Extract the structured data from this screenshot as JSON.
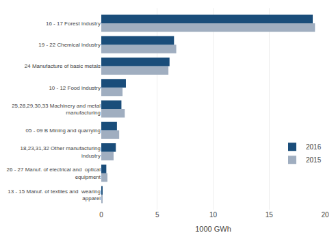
{
  "chart_data": {
    "type": "bar",
    "orientation": "horizontal",
    "categories": [
      "13 - 15 Manuf. of textiles and  wearing\napparel",
      "26 - 27 Manuf. of electrical and  optical\nequipment",
      "18,23,31,32 Other manufacturing\nindustry",
      "05 - 09 B Mining and quarrying",
      "25,28,29,30,33 Machinery and metal\nmanufacturing",
      "10 - 12 Food industry",
      "24 Manufacture of basic metals",
      "19 - 22 Chemical industry",
      "16 - 17 Forest industry"
    ],
    "series": [
      {
        "name": "2016",
        "color": "#1a4d7a",
        "values": [
          0.07,
          0.45,
          1.3,
          1.4,
          1.8,
          2.2,
          6.1,
          6.5,
          18.9
        ]
      },
      {
        "name": "2015",
        "color": "#a0aec0",
        "values": [
          0.1,
          0.55,
          1.1,
          1.6,
          2.1,
          1.9,
          6.0,
          6.7,
          19.1
        ]
      }
    ],
    "xlabel": "1000 GWh",
    "xlim": [
      0,
      20
    ],
    "xticks": [
      0,
      5,
      10,
      15,
      20
    ],
    "grid": true,
    "legend": "right"
  }
}
